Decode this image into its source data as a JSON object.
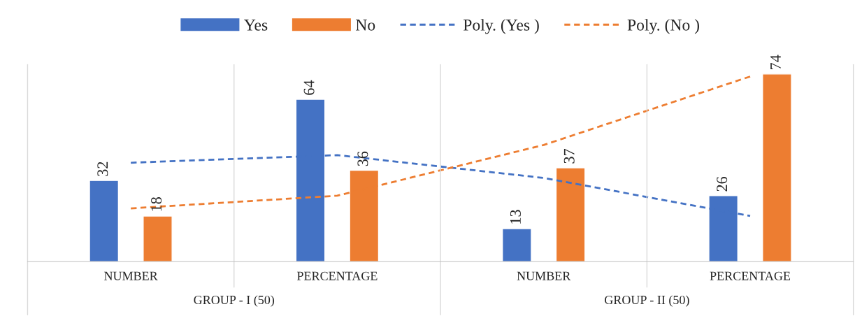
{
  "chart_data": {
    "type": "bar",
    "categories": [
      "NUMBER",
      "PERCENTAGE",
      "NUMBER",
      "PERCENTAGE"
    ],
    "series": [
      {
        "name": "Yes",
        "color": "#4472c4",
        "values": [
          32,
          64,
          13,
          26
        ],
        "value_labels": [
          "32",
          "64",
          "13",
          "26"
        ]
      },
      {
        "name": "No",
        "color": "#ed7d31",
        "values": [
          18,
          36,
          37,
          74
        ],
        "value_labels": [
          "18",
          "36",
          "37",
          "74"
        ]
      },
      {
        "name": "Poly. (Yes )",
        "type": "line",
        "line_style": "dashed",
        "color": "#4472c4",
        "values": [
          39,
          42,
          33,
          18
        ]
      },
      {
        "name": "Poly. (No )",
        "type": "line",
        "line_style": "dashed",
        "color": "#ed7d31",
        "values": [
          21,
          26,
          46,
          73
        ]
      }
    ],
    "legend": "top",
    "annotations": [
      "GROUP - I (50)",
      "GROUP - II (50)"
    ]
  }
}
